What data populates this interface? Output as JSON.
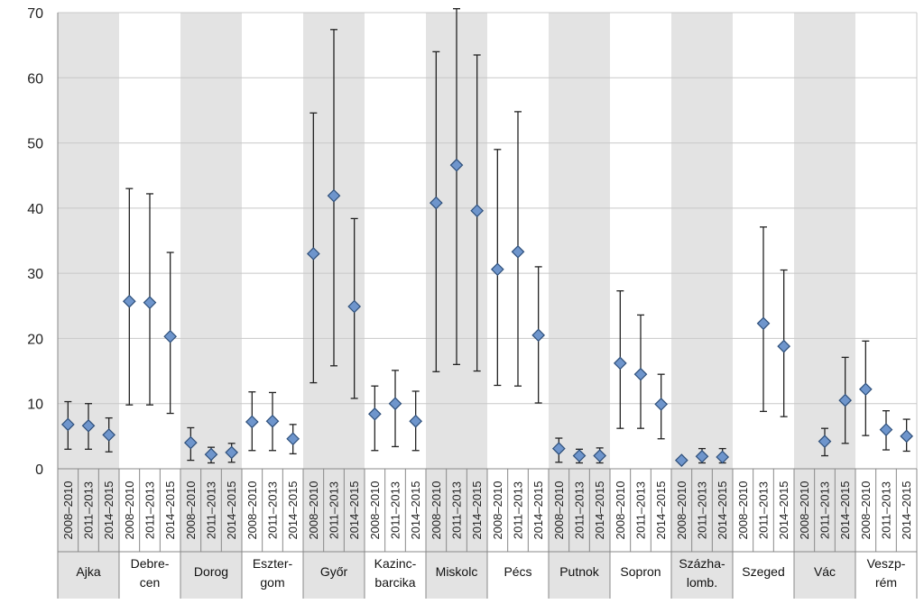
{
  "chart_data": {
    "type": "scatter",
    "subtype": "point-with-error-bars",
    "ylim": [
      0,
      70
    ],
    "yticks": [
      0,
      10,
      20,
      30,
      40,
      50,
      60,
      70
    ],
    "grid": true,
    "alternating_group_shading": true,
    "colors": {
      "marker_fill": "#6e95cc",
      "marker_stroke": "#2e4f7a",
      "shade": "#e3e3e3",
      "grid": "#c8c8c8",
      "axis": "#888888",
      "error_bar": "#222222"
    },
    "periods": [
      "2008–2010",
      "2011–2013",
      "2014–2015"
    ],
    "groups": [
      {
        "lines": [
          "Ajka"
        ],
        "points": [
          {
            "value": 6.8,
            "low": 3.0,
            "high": 10.3
          },
          {
            "value": 6.6,
            "low": 3.0,
            "high": 10.0
          },
          {
            "value": 5.2,
            "low": 2.6,
            "high": 7.8
          }
        ]
      },
      {
        "lines": [
          "Debre-",
          "cen"
        ],
        "points": [
          {
            "value": 25.7,
            "low": 9.8,
            "high": 43.0
          },
          {
            "value": 25.5,
            "low": 9.8,
            "high": 42.2
          },
          {
            "value": 20.3,
            "low": 8.5,
            "high": 33.2
          }
        ]
      },
      {
        "lines": [
          "Dorog"
        ],
        "points": [
          {
            "value": 4.0,
            "low": 1.3,
            "high": 6.3
          },
          {
            "value": 2.2,
            "low": 0.9,
            "high": 3.3
          },
          {
            "value": 2.5,
            "low": 1.0,
            "high": 3.9
          }
        ]
      },
      {
        "lines": [
          "Eszter-",
          "gom"
        ],
        "points": [
          {
            "value": 7.2,
            "low": 2.8,
            "high": 11.8
          },
          {
            "value": 7.3,
            "low": 2.8,
            "high": 11.7
          },
          {
            "value": 4.6,
            "low": 2.3,
            "high": 6.8
          }
        ]
      },
      {
        "lines": [
          "Győr"
        ],
        "points": [
          {
            "value": 33.0,
            "low": 13.2,
            "high": 54.6
          },
          {
            "value": 41.9,
            "low": 15.8,
            "high": 67.4
          },
          {
            "value": 24.9,
            "low": 10.8,
            "high": 38.4
          }
        ]
      },
      {
        "lines": [
          "Kazinc-",
          "barcika"
        ],
        "points": [
          {
            "value": 8.4,
            "low": 2.8,
            "high": 12.7
          },
          {
            "value": 10.0,
            "low": 3.4,
            "high": 15.1
          },
          {
            "value": 7.3,
            "low": 2.8,
            "high": 11.9
          }
        ]
      },
      {
        "lines": [
          "Miskolc"
        ],
        "points": [
          {
            "value": 40.8,
            "low": 14.9,
            "high": 64.0
          },
          {
            "value": 46.6,
            "low": 16.0,
            "high": 70.6
          },
          {
            "value": 39.6,
            "low": 15.0,
            "high": 63.5
          }
        ]
      },
      {
        "lines": [
          "Pécs"
        ],
        "points": [
          {
            "value": 30.6,
            "low": 12.8,
            "high": 49.0
          },
          {
            "value": 33.3,
            "low": 12.7,
            "high": 54.8
          },
          {
            "value": 20.5,
            "low": 10.1,
            "high": 31.0
          }
        ]
      },
      {
        "lines": [
          "Putnok"
        ],
        "points": [
          {
            "value": 3.1,
            "low": 1.0,
            "high": 4.7
          },
          {
            "value": 2.0,
            "low": 0.9,
            "high": 3.0
          },
          {
            "value": 2.0,
            "low": 0.9,
            "high": 3.2
          }
        ]
      },
      {
        "lines": [
          "Sopron"
        ],
        "points": [
          {
            "value": 16.2,
            "low": 6.2,
            "high": 27.3
          },
          {
            "value": 14.5,
            "low": 6.2,
            "high": 23.6
          },
          {
            "value": 9.9,
            "low": 4.6,
            "high": 14.5
          }
        ]
      },
      {
        "lines": [
          "Százha-",
          "lomb."
        ],
        "points": [
          {
            "value": 1.3,
            "low": 0.9,
            "high": 1.6
          },
          {
            "value": 1.9,
            "low": 0.9,
            "high": 3.1
          },
          {
            "value": 1.8,
            "low": 0.9,
            "high": 3.1
          }
        ]
      },
      {
        "lines": [
          "Szeged"
        ],
        "points": [
          null,
          {
            "value": 22.3,
            "low": 8.8,
            "high": 37.1
          },
          {
            "value": 18.8,
            "low": 8.0,
            "high": 30.5
          }
        ]
      },
      {
        "lines": [
          "Vác"
        ],
        "points": [
          null,
          {
            "value": 4.2,
            "low": 2.0,
            "high": 6.2
          },
          {
            "value": 10.5,
            "low": 3.9,
            "high": 17.1
          }
        ]
      },
      {
        "lines": [
          "Veszp-",
          "rém"
        ],
        "points": [
          {
            "value": 12.2,
            "low": 5.1,
            "high": 19.6
          },
          {
            "value": 6.0,
            "low": 2.9,
            "high": 8.9
          },
          {
            "value": 5.0,
            "low": 2.7,
            "high": 7.6
          }
        ]
      }
    ]
  }
}
